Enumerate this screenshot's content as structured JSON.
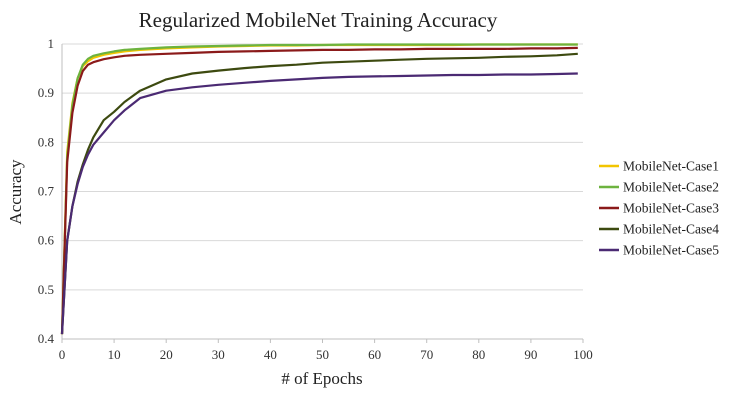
{
  "chart_data": {
    "type": "line",
    "title": "Regularized MobileNet Training Accuracy",
    "xlabel": "# of Epochs",
    "ylabel": "Accuracy",
    "xlim": [
      0,
      100
    ],
    "ylim": [
      0.4,
      1
    ],
    "xticks": [
      "0",
      "10",
      "20",
      "30",
      "40",
      "50",
      "60",
      "70",
      "80",
      "90",
      "100"
    ],
    "yticks": [
      "0.4",
      "0.5",
      "0.6",
      "0.7",
      "0.8",
      "0.9",
      "1"
    ],
    "grid": "horizontal",
    "legend_position": "right",
    "x": [
      0,
      1,
      2,
      3,
      4,
      5,
      6,
      8,
      10,
      12,
      15,
      20,
      25,
      30,
      35,
      40,
      45,
      50,
      55,
      60,
      65,
      70,
      75,
      80,
      85,
      90,
      95,
      99
    ],
    "series": [
      {
        "name": "MobileNet-Case1",
        "color": "#f2c500",
        "values": [
          0.41,
          0.78,
          0.88,
          0.93,
          0.955,
          0.965,
          0.972,
          0.978,
          0.982,
          0.985,
          0.988,
          0.991,
          0.993,
          0.995,
          0.996,
          0.997,
          0.997,
          0.998,
          0.998,
          0.998,
          0.998,
          0.998,
          0.998,
          0.999,
          0.999,
          0.999,
          0.999,
          0.999
        ]
      },
      {
        "name": "MobileNet-Case2",
        "color": "#6db33f",
        "values": [
          0.41,
          0.77,
          0.875,
          0.93,
          0.958,
          0.97,
          0.976,
          0.981,
          0.985,
          0.988,
          0.99,
          0.993,
          0.995,
          0.996,
          0.997,
          0.998,
          0.998,
          0.998,
          0.999,
          0.999,
          0.999,
          0.999,
          0.999,
          0.999,
          0.999,
          0.999,
          0.999,
          0.999
        ]
      },
      {
        "name": "MobileNet-Case3",
        "color": "#8b1a1a",
        "values": [
          0.41,
          0.76,
          0.86,
          0.915,
          0.945,
          0.958,
          0.963,
          0.969,
          0.973,
          0.976,
          0.978,
          0.98,
          0.982,
          0.984,
          0.985,
          0.986,
          0.987,
          0.988,
          0.988,
          0.989,
          0.989,
          0.99,
          0.99,
          0.99,
          0.99,
          0.991,
          0.991,
          0.992
        ]
      },
      {
        "name": "MobileNet-Case4",
        "color": "#3d4a10",
        "values": [
          0.41,
          0.6,
          0.67,
          0.72,
          0.755,
          0.785,
          0.81,
          0.845,
          0.862,
          0.882,
          0.905,
          0.928,
          0.94,
          0.946,
          0.951,
          0.955,
          0.958,
          0.962,
          0.964,
          0.966,
          0.968,
          0.97,
          0.971,
          0.972,
          0.974,
          0.975,
          0.977,
          0.98
        ]
      },
      {
        "name": "MobileNet-Case5",
        "color": "#4b2a73",
        "values": [
          0.41,
          0.6,
          0.67,
          0.715,
          0.75,
          0.775,
          0.795,
          0.82,
          0.845,
          0.865,
          0.89,
          0.905,
          0.912,
          0.917,
          0.921,
          0.925,
          0.928,
          0.931,
          0.933,
          0.934,
          0.935,
          0.936,
          0.937,
          0.937,
          0.938,
          0.938,
          0.939,
          0.94
        ]
      }
    ]
  }
}
